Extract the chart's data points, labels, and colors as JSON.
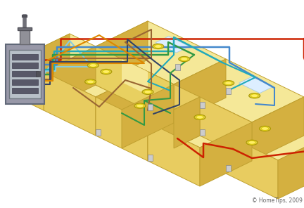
{
  "copyright": "© HomeTips, 2009",
  "bg_color": "#ffffff",
  "wall_top": "#f5e090",
  "wall_front": "#e8cc60",
  "wall_right": "#d4b040",
  "wall_edge": "#c0a030",
  "panel_body": "#9898a8",
  "panel_face": "#b0b8c0",
  "panel_edge": "#707880",
  "wire_red": "#cc2200",
  "wire_blue": "#4488cc",
  "wire_cyan": "#22aabb",
  "wire_green": "#339944",
  "wire_brown": "#996633",
  "wire_dark": "#334466",
  "wire_orange": "#dd8800",
  "wire_light_blue": "#88ccdd",
  "light_outer": "#ddcc44",
  "light_inner": "#ffee66",
  "switch_fill": "#cccccc",
  "switch_edge": "#888888"
}
